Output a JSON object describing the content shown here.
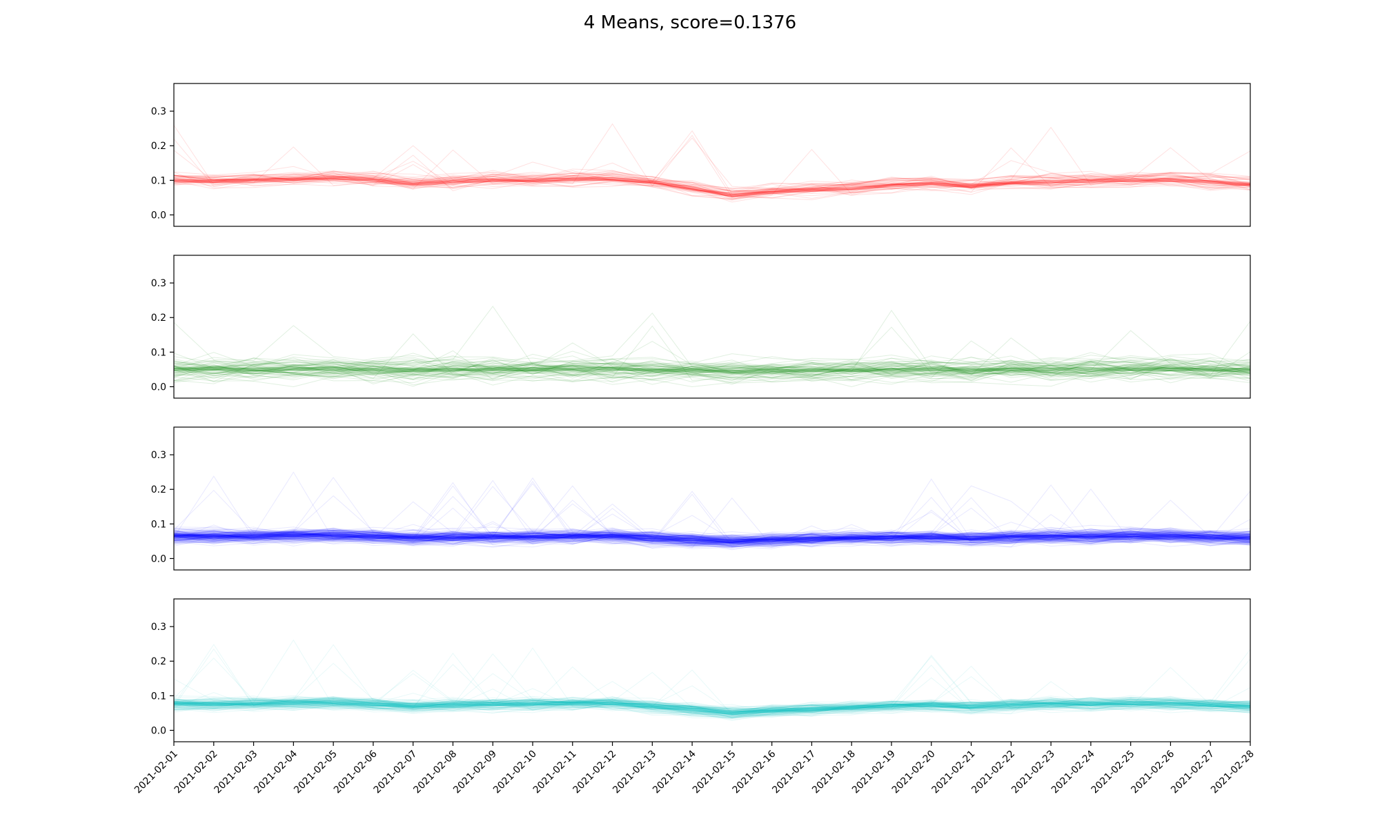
{
  "figure": {
    "suptitle": "4 Means, score=0.1376"
  },
  "chart_data": {
    "type": "line",
    "title": "4 Means, score=0.1376",
    "x": [
      "2021-02-01",
      "2021-02-02",
      "2021-02-03",
      "2021-02-04",
      "2021-02-05",
      "2021-02-06",
      "2021-02-07",
      "2021-02-08",
      "2021-02-09",
      "2021-02-10",
      "2021-02-11",
      "2021-02-12",
      "2021-02-13",
      "2021-02-14",
      "2021-02-15",
      "2021-02-16",
      "2021-02-17",
      "2021-02-18",
      "2021-02-19",
      "2021-02-20",
      "2021-02-21",
      "2021-02-22",
      "2021-02-23",
      "2021-02-24",
      "2021-02-25",
      "2021-02-26",
      "2021-02-27",
      "2021-02-28"
    ],
    "ylim": [
      -0.033,
      0.38
    ],
    "yticks": [
      0.0,
      0.1,
      0.2,
      0.3
    ],
    "grid": false,
    "panels": [
      {
        "cluster": 1,
        "color": "#ff0000",
        "center": [
          0.099,
          0.097,
          0.101,
          0.103,
          0.107,
          0.101,
          0.089,
          0.096,
          0.101,
          0.099,
          0.103,
          0.104,
          0.095,
          0.076,
          0.057,
          0.065,
          0.072,
          0.076,
          0.085,
          0.09,
          0.083,
          0.093,
          0.096,
          0.098,
          0.1,
          0.101,
          0.095,
          0.088
        ],
        "spread": 0.018,
        "n_series": 40
      },
      {
        "cluster": 2,
        "color": "#008000",
        "center": [
          0.05,
          0.052,
          0.05,
          0.051,
          0.052,
          0.049,
          0.048,
          0.049,
          0.05,
          0.05,
          0.051,
          0.052,
          0.048,
          0.047,
          0.044,
          0.046,
          0.047,
          0.048,
          0.049,
          0.05,
          0.048,
          0.05,
          0.051,
          0.051,
          0.051,
          0.05,
          0.049,
          0.048
        ],
        "spread": 0.028,
        "n_series": 60
      },
      {
        "cluster": 3,
        "color": "#0000ff",
        "center": [
          0.065,
          0.065,
          0.066,
          0.067,
          0.067,
          0.064,
          0.061,
          0.062,
          0.063,
          0.063,
          0.064,
          0.065,
          0.06,
          0.055,
          0.05,
          0.055,
          0.058,
          0.06,
          0.061,
          0.062,
          0.059,
          0.063,
          0.064,
          0.065,
          0.066,
          0.066,
          0.062,
          0.06
        ],
        "spread": 0.016,
        "n_series": 160
      },
      {
        "cluster": 4,
        "color": "#00bfbf",
        "center": [
          0.077,
          0.076,
          0.078,
          0.079,
          0.08,
          0.076,
          0.07,
          0.074,
          0.076,
          0.077,
          0.078,
          0.078,
          0.07,
          0.06,
          0.05,
          0.057,
          0.062,
          0.066,
          0.071,
          0.073,
          0.068,
          0.074,
          0.076,
          0.077,
          0.078,
          0.078,
          0.074,
          0.069
        ],
        "spread": 0.014,
        "n_series": 110
      }
    ]
  }
}
